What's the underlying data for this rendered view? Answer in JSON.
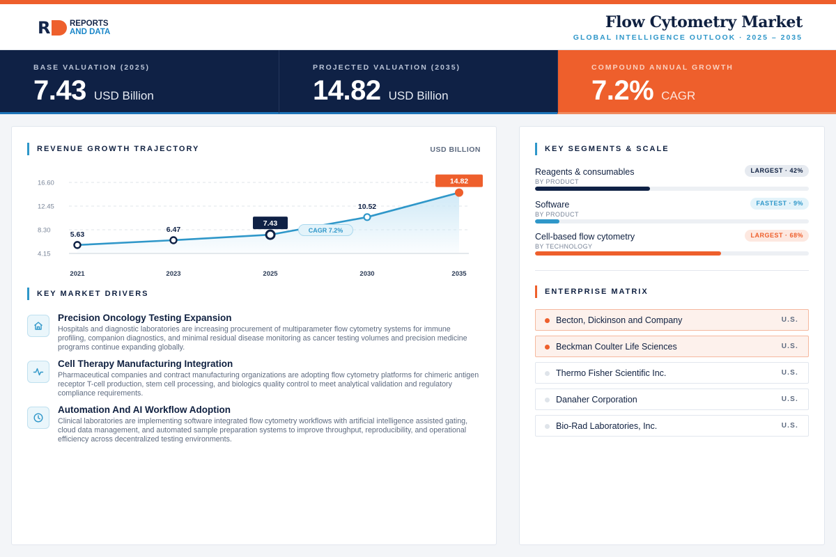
{
  "brand": {
    "logo_mark": "R",
    "logo_line1": "REPORTS",
    "logo_line2": "AND DATA"
  },
  "header": {
    "title": "Flow Cytometry Market",
    "subtitle": "GLOBAL INTELLIGENCE OUTLOOK  ·  2025 – 2035"
  },
  "kpis": [
    {
      "label": "BASE VALUATION (2025)",
      "value": "7.43",
      "unit": "USD Billion"
    },
    {
      "label": "PROJECTED VALUATION (2035)",
      "value": "14.82",
      "unit": "USD Billion"
    },
    {
      "label": "COMPOUND ANNUAL GROWTH",
      "value": "7.2%",
      "unit": "CAGR"
    }
  ],
  "revenue": {
    "section_title": "REVENUE GROWTH TRAJECTORY",
    "unit_tag": "USD BILLION"
  },
  "chart_data": {
    "type": "area",
    "categories": [
      "2021",
      "2023",
      "2025",
      "2030",
      "2035"
    ],
    "values": [
      5.63,
      6.47,
      7.43,
      10.52,
      14.82
    ],
    "data_labels": [
      "5.63",
      "6.47",
      "7.43",
      "10.52",
      "14.82"
    ],
    "yticks": [
      4.15,
      8.3,
      12.45,
      16.6
    ],
    "ytick_labels": [
      "4.15",
      "8.30",
      "12.45",
      "16.60"
    ],
    "ylim": [
      4.15,
      16.6
    ],
    "highlight_base": "2025",
    "highlight_end": "2035",
    "annotation": "CAGR 7.2%",
    "grid": true,
    "colors": {
      "line": "#2f97c9",
      "fill_top": "#cde8f6",
      "dark": "#0f2145",
      "accent": "#ee5f2c"
    }
  },
  "drivers": {
    "section_title": "KEY MARKET DRIVERS",
    "items": [
      {
        "icon": "home-icon",
        "title": "Precision Oncology Testing Expansion",
        "desc": "Hospitals and diagnostic laboratories are increasing procurement of multiparameter flow cytometry systems for immune profiling, companion diagnostics, and minimal residual disease monitoring as cancer testing volumes and precision medicine programs continue expanding globally."
      },
      {
        "icon": "activity-icon",
        "title": "Cell Therapy Manufacturing Integration",
        "desc": "Pharmaceutical companies and contract manufacturing organizations are adopting flow cytometry platforms for chimeric antigen receptor T-cell production, stem cell processing, and biologics quality control to meet analytical validation and regulatory compliance requirements."
      },
      {
        "icon": "clock-icon",
        "title": "Automation And AI Workflow Adoption",
        "desc": "Clinical laboratories are implementing software integrated flow cytometry workflows with artificial intelligence assisted gating, cloud data management, and automated sample preparation systems to improve throughput, reproducibility, and operational efficiency across decentralized testing environments."
      }
    ]
  },
  "segments": {
    "section_title": "KEY SEGMENTS & SCALE",
    "items": [
      {
        "name": "Reagents & consumables",
        "category": "BY PRODUCT",
        "badge": "LARGEST · 42%",
        "share": 0.42,
        "tone": "dark",
        "color": "#0f2145"
      },
      {
        "name": "Software",
        "category": "BY PRODUCT",
        "badge": "FASTEST · 9%",
        "share": 0.09,
        "tone": "blue",
        "color": "#2f97c9"
      },
      {
        "name": "Cell-based flow cytometry",
        "category": "BY TECHNOLOGY",
        "badge": "LARGEST · 68%",
        "share": 0.68,
        "tone": "orange",
        "color": "#ee5f2c"
      }
    ]
  },
  "enterprise": {
    "section_title": "ENTERPRISE MATRIX",
    "items": [
      {
        "name": "Becton, Dickinson and Company",
        "country": "U.S.",
        "highlight": true
      },
      {
        "name": "Beckman Coulter Life Sciences",
        "country": "U.S.",
        "highlight": true
      },
      {
        "name": "Thermo Fisher Scientific Inc.",
        "country": "U.S.",
        "highlight": false
      },
      {
        "name": "Danaher Corporation",
        "country": "U.S.",
        "highlight": false
      },
      {
        "name": "Bio-Rad Laboratories, Inc.",
        "country": "U.S.",
        "highlight": false
      }
    ]
  }
}
